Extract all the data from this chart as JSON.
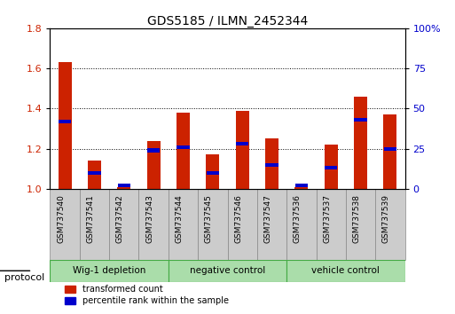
{
  "title": "GDS5185 / ILMN_2452344",
  "samples": [
    "GSM737540",
    "GSM737541",
    "GSM737542",
    "GSM737543",
    "GSM737544",
    "GSM737545",
    "GSM737546",
    "GSM737547",
    "GSM737536",
    "GSM737537",
    "GSM737538",
    "GSM737539"
  ],
  "red_values": [
    1.63,
    1.14,
    1.01,
    1.24,
    1.38,
    1.17,
    1.39,
    1.25,
    1.01,
    1.22,
    1.46,
    1.37
  ],
  "blue_values": [
    42,
    10,
    2,
    24,
    26,
    10,
    28,
    15,
    2,
    13,
    43,
    25
  ],
  "ylim_left": [
    1.0,
    1.8
  ],
  "yticks_left": [
    1.0,
    1.2,
    1.4,
    1.6,
    1.8
  ],
  "ylim_right": [
    0,
    100
  ],
  "yticks_right": [
    0,
    25,
    50,
    75,
    100
  ],
  "yticklabels_right": [
    "0",
    "25",
    "50",
    "75",
    "100%"
  ],
  "groups": [
    {
      "label": "Wig-1 depletion",
      "start": 0,
      "end": 3
    },
    {
      "label": "negative control",
      "start": 4,
      "end": 7
    },
    {
      "label": "vehicle control",
      "start": 8,
      "end": 11
    }
  ],
  "group_color": "#aaddaa",
  "group_border_color": "#44aa44",
  "bar_width": 0.45,
  "red_color": "#CC2200",
  "blue_color": "#0000CC",
  "tick_label_color_left": "#CC2200",
  "tick_label_color_right": "#0000CC",
  "legend_red_label": "transformed count",
  "legend_blue_label": "percentile rank within the sample",
  "protocol_label": "protocol",
  "background_color": "#ffffff",
  "plot_bg_color": "#ffffff",
  "grid_color": "#000000",
  "bar_base": 1.0,
  "sample_box_color": "#cccccc",
  "sample_box_edge_color": "#888888"
}
